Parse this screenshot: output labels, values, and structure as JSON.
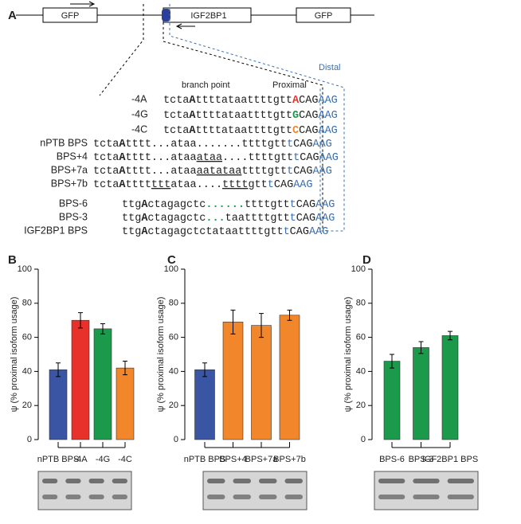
{
  "panel_labels": [
    "A",
    "B",
    "C",
    "D"
  ],
  "diagram": {
    "exons": [
      "GFP",
      "IGF2BP1",
      "GFP"
    ],
    "distal_label": "Distal",
    "branch_point_label": "branch point",
    "proximal_label": "Proximal",
    "mutants": [
      {
        "name": "-4A",
        "parts": [
          "tcta",
          "A",
          "ttttataattttgtt",
          "A",
          "CAG",
          "AAG"
        ]
      },
      {
        "name": "-4G",
        "parts": [
          "tcta",
          "A",
          "ttttataattttgtt",
          "G",
          "CAG",
          "AAG"
        ]
      },
      {
        "name": "-4C",
        "parts": [
          "tcta",
          "A",
          "ttttataattttgtt",
          "C",
          "CAG",
          "AAG"
        ]
      }
    ],
    "sequences": [
      {
        "name": "nPTB BPS",
        "parts": [
          "tcta",
          "A",
          "tttt...ataa.......ttttgtt",
          "t",
          "CAG",
          "AAG"
        ]
      },
      {
        "name": "BPS+4",
        "parts": [
          "tcta",
          "A",
          "tttt...ataa",
          "ataa",
          "....ttttgtt",
          "t",
          "CAG",
          "AAG"
        ]
      },
      {
        "name": "BPS+7a",
        "parts": [
          "tcta",
          "A",
          "tttt...ataa",
          "aatataa",
          "ttttgtt",
          "t",
          "CAG",
          "AAG"
        ]
      },
      {
        "name": "BPS+7b",
        "parts": [
          "tcta",
          "A",
          "tttt",
          "ttt",
          "ataa....",
          "tttt",
          "gtt",
          "t",
          "CAG",
          "AAG"
        ]
      },
      {
        "name": "BPS-6",
        "parts": [
          "ttg",
          "A",
          "ctagagctc",
          "......",
          "ttttgtt",
          "t",
          "CAG",
          "AAG"
        ]
      },
      {
        "name": "BPS-3",
        "parts": [
          "ttg",
          "A",
          "ctagagctc",
          "...",
          "taattttgtt",
          "t",
          "CAG",
          "AAG"
        ]
      },
      {
        "name": "IGF2BP1 BPS",
        "parts": [
          "ttg",
          "A",
          "ctagagctctataattttgtt",
          "t",
          "CAG",
          "AAG"
        ]
      }
    ]
  },
  "chart_data": [
    {
      "type": "bar",
      "ylabel": "ψ (% proximal isoform usage)",
      "categories": [
        "nPTB BPS",
        "-4A",
        "-4G",
        "-4C"
      ],
      "values": [
        41,
        70,
        65,
        42
      ],
      "errors": [
        4,
        4.5,
        3,
        4
      ],
      "colors": [
        "#3a55a4",
        "#e8312a",
        "#1a9a4a",
        "#f2862a"
      ],
      "ylim": [
        0,
        100
      ],
      "yticks": [
        0,
        20,
        40,
        60,
        80,
        100
      ]
    },
    {
      "type": "bar",
      "ylabel": "ψ (% proximal isoform usage)",
      "categories": [
        "nPTB BPS",
        "BPS+4",
        "BPS+7a",
        "BPS+7b"
      ],
      "values": [
        41,
        69,
        67,
        73
      ],
      "errors": [
        4,
        7,
        7,
        3
      ],
      "colors": [
        "#3a55a4",
        "#f2862a",
        "#f2862a",
        "#f2862a"
      ],
      "ylim": [
        0,
        100
      ],
      "yticks": [
        0,
        20,
        40,
        60,
        80,
        100
      ]
    },
    {
      "type": "bar",
      "ylabel": "ψ (% proximal isoform usage)",
      "categories": [
        "BPS-6",
        "BPS-3",
        "IGF2BP1 BPS"
      ],
      "values": [
        46,
        54,
        61
      ],
      "errors": [
        4,
        3.5,
        2.5
      ],
      "colors": [
        "#1a9a4a",
        "#1a9a4a",
        "#1a9a4a"
      ],
      "ylim": [
        0,
        100
      ],
      "yticks": [
        0,
        20,
        40,
        60,
        80,
        100
      ]
    }
  ]
}
